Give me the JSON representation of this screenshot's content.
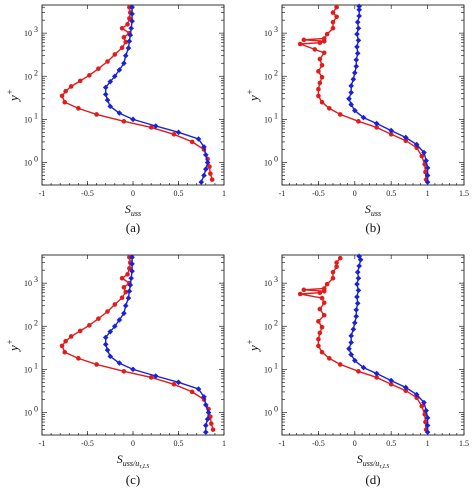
{
  "colors": {
    "red": "#e21b1b",
    "blue": "#1a22d6",
    "axis": "#222222"
  },
  "chart_data": [
    {
      "type": "line",
      "caption": "(a)",
      "xlabel_main": "S",
      "xlabel_sub": "uss",
      "xlabel_sub2": "",
      "ylabel": "y",
      "ylabel_sup": "+",
      "xlim": [
        -1,
        1
      ],
      "ylim": [
        0.3,
        4500
      ],
      "yscale": "log",
      "xticks": [
        "-1",
        "-0.5",
        "0",
        "0.5",
        "1"
      ],
      "yticks": [
        "10",
        "10",
        "10",
        "10"
      ],
      "ytick_exp": [
        "0",
        "1",
        "2",
        "3"
      ],
      "series": [
        {
          "color": "red",
          "marker": "circle",
          "points": [
            [
              0.87,
              0.4
            ],
            [
              0.85,
              0.55
            ],
            [
              0.84,
              0.8
            ],
            [
              0.82,
              1.2
            ],
            [
              0.78,
              2
            ],
            [
              0.65,
              3
            ],
            [
              0.45,
              4.5
            ],
            [
              0.2,
              6.5
            ],
            [
              -0.1,
              9
            ],
            [
              -0.4,
              13
            ],
            [
              -0.6,
              18
            ],
            [
              -0.75,
              25
            ],
            [
              -0.78,
              35
            ],
            [
              -0.74,
              45
            ],
            [
              -0.68,
              58
            ],
            [
              -0.58,
              78
            ],
            [
              -0.48,
              105
            ],
            [
              -0.38,
              150
            ],
            [
              -0.28,
              220
            ],
            [
              -0.2,
              320
            ],
            [
              -0.12,
              460
            ],
            [
              -0.08,
              620
            ],
            [
              -0.1,
              800
            ],
            [
              -0.04,
              1000
            ],
            [
              -0.12,
              1300
            ],
            [
              -0.06,
              1600
            ],
            [
              -0.04,
              2200
            ],
            [
              -0.03,
              3000
            ],
            [
              -0.04,
              4000
            ]
          ]
        },
        {
          "color": "blue",
          "marker": "diamond",
          "points": [
            [
              0.75,
              0.35
            ],
            [
              0.78,
              0.5
            ],
            [
              0.8,
              0.7
            ],
            [
              0.82,
              1
            ],
            [
              0.8,
              1.5
            ],
            [
              0.78,
              2.3
            ],
            [
              0.72,
              3.5
            ],
            [
              0.5,
              5
            ],
            [
              0.25,
              7
            ],
            [
              0.0,
              10
            ],
            [
              -0.15,
              14
            ],
            [
              -0.25,
              20
            ],
            [
              -0.28,
              28
            ],
            [
              -0.3,
              38
            ],
            [
              -0.3,
              55
            ],
            [
              -0.25,
              75
            ],
            [
              -0.2,
              100
            ],
            [
              -0.15,
              140
            ],
            [
              -0.1,
              200
            ],
            [
              -0.08,
              300
            ],
            [
              -0.05,
              450
            ],
            [
              -0.04,
              650
            ],
            [
              -0.03,
              900
            ],
            [
              -0.02,
              1300
            ],
            [
              -0.01,
              1900
            ],
            [
              -0.01,
              2800
            ],
            [
              -0.01,
              4000
            ]
          ]
        }
      ]
    },
    {
      "type": "line",
      "caption": "(b)",
      "xlabel_main": "S",
      "xlabel_sub": "uss",
      "xlabel_sub2": "",
      "ylabel": "y",
      "ylabel_sup": "+",
      "xlim": [
        -1,
        1.5
      ],
      "ylim": [
        0.3,
        4500
      ],
      "yscale": "log",
      "xticks": [
        "-1",
        "-0.5",
        "0",
        "0.5",
        "1",
        "1.5"
      ],
      "yticks": [
        "10",
        "10",
        "10",
        "10"
      ],
      "ytick_exp": [
        "0",
        "1",
        "2",
        "3"
      ],
      "series": [
        {
          "color": "red",
          "marker": "circle",
          "points": [
            [
              0.98,
              0.4
            ],
            [
              0.97,
              0.6
            ],
            [
              0.96,
              0.9
            ],
            [
              0.92,
              1.4
            ],
            [
              0.85,
              2.2
            ],
            [
              0.7,
              3.2
            ],
            [
              0.5,
              4.5
            ],
            [
              0.3,
              6.5
            ],
            [
              0.05,
              9
            ],
            [
              -0.2,
              13
            ],
            [
              -0.35,
              18
            ],
            [
              -0.45,
              25
            ],
            [
              -0.5,
              35
            ],
            [
              -0.5,
              50
            ],
            [
              -0.48,
              70
            ],
            [
              -0.45,
              95
            ],
            [
              -0.5,
              130
            ],
            [
              -0.45,
              180
            ],
            [
              -0.48,
              250
            ],
            [
              -0.42,
              350
            ],
            [
              -0.55,
              420
            ],
            [
              -0.75,
              560
            ],
            [
              -0.48,
              600
            ],
            [
              -0.42,
              650
            ],
            [
              -0.7,
              700
            ],
            [
              -0.42,
              750
            ],
            [
              -0.38,
              950
            ],
            [
              -0.3,
              1300
            ],
            [
              -0.3,
              1800
            ],
            [
              -0.25,
              2400
            ],
            [
              -0.3,
              3000
            ],
            [
              -0.25,
              4000
            ]
          ]
        },
        {
          "color": "blue",
          "marker": "diamond",
          "points": [
            [
              1.0,
              0.35
            ],
            [
              1.0,
              0.5
            ],
            [
              1.0,
              0.75
            ],
            [
              0.98,
              1.1
            ],
            [
              0.95,
              1.7
            ],
            [
              0.85,
              2.6
            ],
            [
              0.7,
              3.8
            ],
            [
              0.5,
              5.5
            ],
            [
              0.3,
              8
            ],
            [
              0.12,
              11
            ],
            [
              0.0,
              16
            ],
            [
              -0.05,
              22
            ],
            [
              -0.08,
              30
            ],
            [
              -0.05,
              42
            ],
            [
              -0.05,
              60
            ],
            [
              -0.02,
              85
            ],
            [
              0.0,
              120
            ],
            [
              0.02,
              170
            ],
            [
              0.02,
              240
            ],
            [
              0.04,
              340
            ],
            [
              0.03,
              480
            ],
            [
              0.05,
              680
            ],
            [
              0.03,
              950
            ],
            [
              0.05,
              1300
            ],
            [
              0.04,
              1800
            ],
            [
              0.06,
              2500
            ],
            [
              0.06,
              3500
            ],
            [
              0.06,
              4200
            ]
          ]
        }
      ]
    },
    {
      "type": "line",
      "caption": "(c)",
      "xlabel_main": "S",
      "xlabel_sub": "uss",
      "xlabel_sub2": "/u",
      "xlabel_sub3": "τ,LS",
      "ylabel": "y",
      "ylabel_sup": "+",
      "xlim": [
        -1,
        1
      ],
      "ylim": [
        0.3,
        4500
      ],
      "yscale": "log",
      "xticks": [
        "-1",
        "-0.5",
        "0",
        "0.5",
        "1"
      ],
      "yticks": [
        "10",
        "10",
        "10",
        "10"
      ],
      "ytick_exp": [
        "0",
        "1",
        "2",
        "3"
      ],
      "series": [
        {
          "color": "red",
          "marker": "circle",
          "points": [
            [
              0.88,
              0.4
            ],
            [
              0.86,
              0.55
            ],
            [
              0.85,
              0.8
            ],
            [
              0.83,
              1.2
            ],
            [
              0.78,
              2
            ],
            [
              0.65,
              3
            ],
            [
              0.45,
              4.5
            ],
            [
              0.2,
              6.5
            ],
            [
              -0.1,
              9
            ],
            [
              -0.4,
              13
            ],
            [
              -0.6,
              18
            ],
            [
              -0.75,
              25
            ],
            [
              -0.78,
              35
            ],
            [
              -0.74,
              45
            ],
            [
              -0.68,
              58
            ],
            [
              -0.58,
              78
            ],
            [
              -0.48,
              105
            ],
            [
              -0.38,
              150
            ],
            [
              -0.28,
              220
            ],
            [
              -0.2,
              320
            ],
            [
              -0.12,
              460
            ],
            [
              -0.08,
              620
            ],
            [
              -0.1,
              800
            ],
            [
              -0.04,
              1000
            ],
            [
              -0.12,
              1300
            ],
            [
              -0.06,
              1600
            ],
            [
              -0.04,
              2200
            ],
            [
              -0.03,
              3000
            ],
            [
              -0.04,
              4000
            ]
          ]
        },
        {
          "color": "blue",
          "marker": "diamond",
          "points": [
            [
              0.8,
              0.35
            ],
            [
              0.8,
              0.5
            ],
            [
              0.82,
              0.7
            ],
            [
              0.83,
              1
            ],
            [
              0.8,
              1.5
            ],
            [
              0.78,
              2.3
            ],
            [
              0.72,
              3.5
            ],
            [
              0.5,
              5
            ],
            [
              0.25,
              7
            ],
            [
              0.0,
              10
            ],
            [
              -0.15,
              14
            ],
            [
              -0.25,
              20
            ],
            [
              -0.28,
              28
            ],
            [
              -0.3,
              38
            ],
            [
              -0.3,
              55
            ],
            [
              -0.25,
              75
            ],
            [
              -0.2,
              100
            ],
            [
              -0.15,
              140
            ],
            [
              -0.1,
              200
            ],
            [
              -0.08,
              300
            ],
            [
              -0.05,
              450
            ],
            [
              -0.04,
              650
            ],
            [
              -0.03,
              900
            ],
            [
              -0.02,
              1300
            ],
            [
              -0.01,
              1900
            ],
            [
              -0.01,
              2800
            ],
            [
              -0.01,
              4000
            ]
          ]
        }
      ]
    },
    {
      "type": "line",
      "caption": "(d)",
      "xlabel_main": "S",
      "xlabel_sub": "uss",
      "xlabel_sub2": "/u",
      "xlabel_sub3": "τ,LS",
      "ylabel": "y",
      "ylabel_sup": "+",
      "xlim": [
        -1,
        1.5
      ],
      "ylim": [
        0.3,
        4500
      ],
      "yscale": "log",
      "xticks": [
        "-1",
        "-0.5",
        "0",
        "0.5",
        "1",
        "1.5"
      ],
      "yticks": [
        "10",
        "10",
        "10",
        "10"
      ],
      "ytick_exp": [
        "0",
        "1",
        "2",
        "3"
      ],
      "series": [
        {
          "color": "red",
          "marker": "circle",
          "points": [
            [
              0.98,
              0.4
            ],
            [
              0.97,
              0.6
            ],
            [
              0.96,
              0.9
            ],
            [
              0.92,
              1.4
            ],
            [
              0.85,
              2.2
            ],
            [
              0.7,
              3.2
            ],
            [
              0.5,
              4.5
            ],
            [
              0.3,
              6.5
            ],
            [
              0.05,
              9
            ],
            [
              -0.2,
              13
            ],
            [
              -0.35,
              18
            ],
            [
              -0.45,
              25
            ],
            [
              -0.5,
              35
            ],
            [
              -0.5,
              50
            ],
            [
              -0.48,
              70
            ],
            [
              -0.45,
              95
            ],
            [
              -0.5,
              130
            ],
            [
              -0.42,
              180
            ],
            [
              -0.48,
              250
            ],
            [
              -0.42,
              350
            ],
            [
              -0.45,
              450
            ],
            [
              -0.75,
              560
            ],
            [
              -0.48,
              600
            ],
            [
              -0.42,
              650
            ],
            [
              -0.7,
              700
            ],
            [
              -0.42,
              750
            ],
            [
              -0.38,
              950
            ],
            [
              -0.3,
              1300
            ],
            [
              -0.3,
              1800
            ],
            [
              -0.25,
              2400
            ],
            [
              -0.25,
              3000
            ],
            [
              -0.2,
              3800
            ]
          ]
        },
        {
          "color": "blue",
          "marker": "diamond",
          "points": [
            [
              1.0,
              0.35
            ],
            [
              1.0,
              0.5
            ],
            [
              1.0,
              0.75
            ],
            [
              0.98,
              1.1
            ],
            [
              0.95,
              1.7
            ],
            [
              0.85,
              2.6
            ],
            [
              0.7,
              3.8
            ],
            [
              0.5,
              5.5
            ],
            [
              0.3,
              8
            ],
            [
              0.12,
              11
            ],
            [
              0.0,
              16
            ],
            [
              -0.05,
              22
            ],
            [
              -0.08,
              30
            ],
            [
              -0.05,
              42
            ],
            [
              -0.05,
              60
            ],
            [
              -0.02,
              85
            ],
            [
              0.0,
              120
            ],
            [
              0.02,
              170
            ],
            [
              0.02,
              240
            ],
            [
              0.04,
              340
            ],
            [
              0.03,
              480
            ],
            [
              0.05,
              680
            ],
            [
              0.03,
              950
            ],
            [
              0.05,
              1300
            ],
            [
              0.04,
              1800
            ],
            [
              0.06,
              2500
            ],
            [
              0.08,
              3500
            ],
            [
              0.06,
              4200
            ]
          ]
        }
      ]
    }
  ]
}
